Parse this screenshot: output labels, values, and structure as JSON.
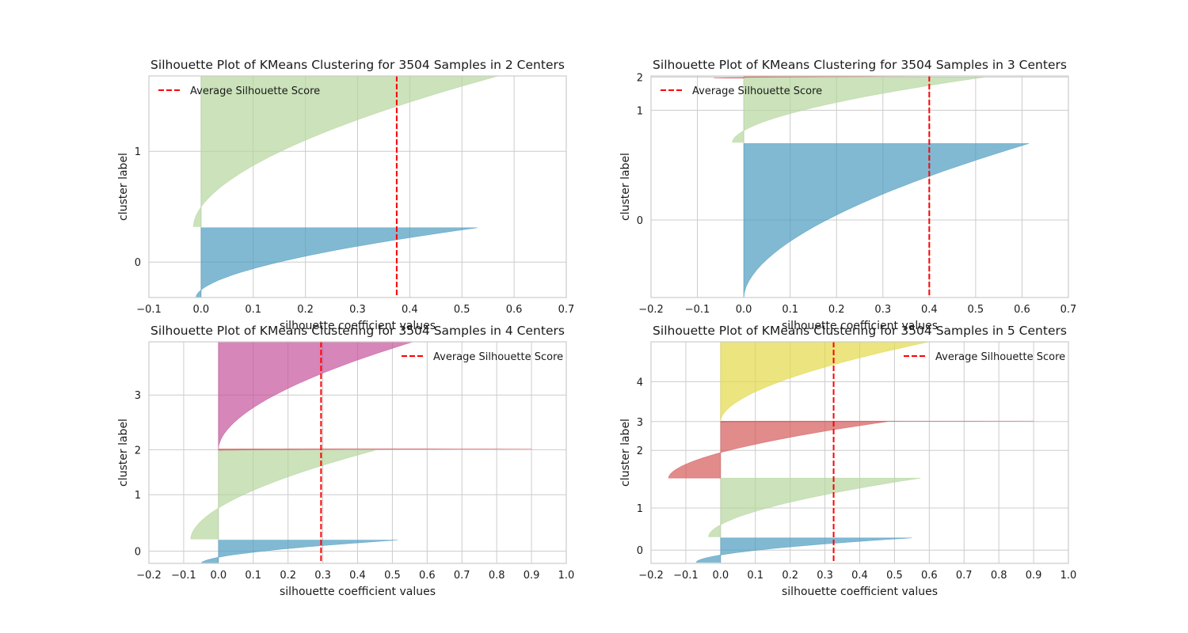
{
  "chart_data": [
    {
      "type": "silhouette",
      "title": "Silhouette Plot of KMeans Clustering for 3504 Samples in 2 Centers",
      "xlabel": "silhouette coefficient values",
      "ylabel": "cluster label",
      "xlim": [
        -0.1,
        0.7
      ],
      "xticks": [
        "−0.1",
        "0.0",
        "0.1",
        "0.2",
        "0.3",
        "0.4",
        "0.5",
        "0.6",
        "0.7"
      ],
      "average_silhouette_score": 0.375,
      "legend": {
        "label": "Average Silhouette Score",
        "position": "upper left"
      },
      "grid": true,
      "clusters": [
        {
          "label": "0",
          "color": "#4c9bc0",
          "min": -0.01,
          "max": 0.53
        },
        {
          "label": "1",
          "color": "#b5d69c",
          "min": -0.015,
          "max": 0.57
        }
      ]
    },
    {
      "type": "silhouette",
      "title": "Silhouette Plot of KMeans Clustering for 3504 Samples in 3 Centers",
      "xlabel": "silhouette coefficient values",
      "ylabel": "cluster label",
      "xlim": [
        -0.2,
        0.7
      ],
      "xticks": [
        "−0.2",
        "−0.1",
        "0.0",
        "0.1",
        "0.2",
        "0.3",
        "0.4",
        "0.5",
        "0.6",
        "0.7"
      ],
      "average_silhouette_score": 0.4,
      "legend": {
        "label": "Average Silhouette Score",
        "position": "upper left"
      },
      "grid": true,
      "clusters": [
        {
          "label": "0",
          "color": "#4c9bc0",
          "min": 0.0,
          "max": 0.615
        },
        {
          "label": "1",
          "color": "#b5d69c",
          "min": -0.025,
          "max": 0.52
        },
        {
          "label": "2",
          "color": "#d45a5a",
          "min": -0.065,
          "max": 0.47
        }
      ]
    },
    {
      "type": "silhouette",
      "title": "Silhouette Plot of KMeans Clustering for 3504 Samples in 4 Centers",
      "xlabel": "silhouette coefficient values",
      "ylabel": "cluster label",
      "xlim": [
        -0.2,
        1.0
      ],
      "xticks": [
        "−0.2",
        "−0.1",
        "0.0",
        "0.1",
        "0.2",
        "0.3",
        "0.4",
        "0.5",
        "0.6",
        "0.7",
        "0.8",
        "0.9",
        "1.0"
      ],
      "average_silhouette_score": 0.295,
      "legend": {
        "label": "Average Silhouette Score",
        "position": "upper right"
      },
      "grid": true,
      "clusters": [
        {
          "label": "0",
          "color": "#4c9bc0",
          "min": -0.05,
          "max": 0.515
        },
        {
          "label": "1",
          "color": "#b5d69c",
          "min": -0.08,
          "max": 0.45
        },
        {
          "label": "2",
          "color": "#d45a5a",
          "min": 0.0,
          "max": 0.9
        },
        {
          "label": "3",
          "color": "#c4539a",
          "min": 0.0,
          "max": 0.56
        }
      ]
    },
    {
      "type": "silhouette",
      "title": "Silhouette Plot of KMeans Clustering for 3504 Samples in 5 Centers",
      "xlabel": "silhouette coefficient values",
      "ylabel": "cluster label",
      "xlim": [
        -0.2,
        1.0
      ],
      "xticks": [
        "−0.2",
        "−0.1",
        "0.0",
        "0.1",
        "0.2",
        "0.3",
        "0.4",
        "0.5",
        "0.6",
        "0.7",
        "0.8",
        "0.9",
        "1.0"
      ],
      "average_silhouette_score": 0.325,
      "legend": {
        "label": "Average Silhouette Score",
        "position": "upper right"
      },
      "grid": true,
      "clusters": [
        {
          "label": "0",
          "color": "#4c9bc0",
          "min": -0.07,
          "max": 0.55
        },
        {
          "label": "1",
          "color": "#b5d69c",
          "min": -0.035,
          "max": 0.575
        },
        {
          "label": "2",
          "color": "#d45a5a",
          "min": -0.15,
          "max": 0.48
        },
        {
          "label": "3",
          "color": "#d45a5a",
          "min": 0.0,
          "max": 0.9
        },
        {
          "label": "4",
          "color": "#e2d849",
          "min": 0.0,
          "max": 0.6
        }
      ]
    }
  ]
}
